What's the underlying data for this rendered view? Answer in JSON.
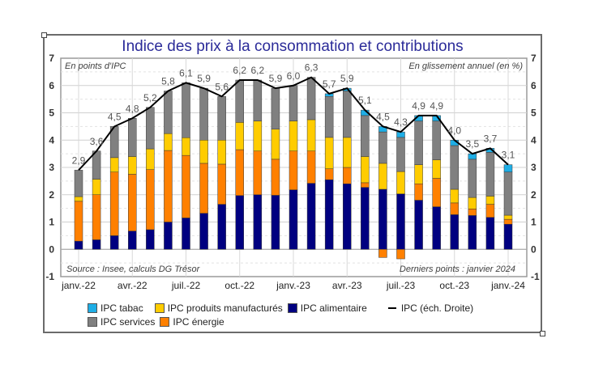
{
  "chart_data": {
    "type": "bar",
    "stacked": true,
    "title": "Indice des prix à la consommation et contributions",
    "left_annotation": "En points d'IPC",
    "right_annotation": "En glissement annuel (en %)",
    "source_note": "Source : Insee, calculs DG Trésor",
    "last_points_note": "Derniers points : janvier 2024",
    "ylim": [
      -1,
      7
    ],
    "y_ticks": [
      -1,
      0,
      1,
      2,
      3,
      4,
      5,
      6,
      7
    ],
    "y2lim": [
      -1,
      7
    ],
    "y2_ticks": [
      -1,
      0,
      1,
      2,
      3,
      4,
      5,
      6,
      7
    ],
    "grid": true,
    "legend_position": "bottom",
    "x_tick_labels": [
      {
        "index": 0,
        "label": "janv.-22"
      },
      {
        "index": 3,
        "label": "avr.-22"
      },
      {
        "index": 6,
        "label": "juil.-22"
      },
      {
        "index": 9,
        "label": "oct.-22"
      },
      {
        "index": 12,
        "label": "janv.-23"
      },
      {
        "index": 15,
        "label": "avr.-23"
      },
      {
        "index": 18,
        "label": "juil.-23"
      },
      {
        "index": 21,
        "label": "oct.-23"
      },
      {
        "index": 24,
        "label": "janv.-24"
      }
    ],
    "categories": [
      "janv.-22",
      "févr.-22",
      "mars-22",
      "avr.-22",
      "mai-22",
      "juin-22",
      "juil.-22",
      "août-22",
      "sept.-22",
      "oct.-22",
      "nov.-22",
      "déc.-22",
      "janv.-23",
      "févr.-23",
      "mars-23",
      "avr.-23",
      "mai-23",
      "juin-23",
      "juil.-23",
      "août-23",
      "sept.-23",
      "oct.-23",
      "nov.-23",
      "déc.-23",
      "janv.-24"
    ],
    "series": [
      {
        "name": "IPC alimentaire",
        "color": "#000080",
        "values": [
          0.3,
          0.35,
          0.5,
          0.67,
          0.72,
          1.0,
          1.15,
          1.32,
          1.65,
          1.97,
          2.0,
          1.98,
          2.18,
          2.42,
          2.55,
          2.4,
          2.27,
          2.2,
          2.03,
          1.8,
          1.56,
          1.27,
          1.24,
          1.17,
          0.92
        ]
      },
      {
        "name": "IPC énergie",
        "color": "#ff8000",
        "values": [
          1.46,
          1.65,
          2.33,
          2.08,
          2.2,
          2.62,
          2.29,
          1.83,
          1.47,
          1.68,
          1.6,
          1.32,
          1.42,
          1.18,
          0.4,
          0.6,
          0.17,
          -0.3,
          -0.35,
          0.6,
          1.04,
          0.43,
          0.24,
          0.48,
          0.18
        ]
      },
      {
        "name": "IPC produits manufacturés",
        "color": "#ffcc00",
        "values": [
          0.17,
          0.57,
          0.53,
          0.65,
          0.76,
          0.62,
          0.65,
          0.85,
          0.88,
          1.0,
          1.1,
          1.1,
          1.1,
          1.15,
          1.15,
          1.1,
          0.96,
          0.95,
          0.82,
          0.7,
          0.68,
          0.5,
          0.42,
          0.3,
          0.15
        ]
      },
      {
        "name": "IPC services",
        "color": "#808080",
        "values": [
          0.97,
          1.03,
          1.14,
          1.4,
          1.52,
          1.56,
          2.01,
          1.9,
          1.6,
          1.55,
          1.5,
          1.5,
          1.3,
          1.55,
          1.5,
          1.7,
          1.5,
          1.15,
          1.25,
          1.6,
          1.42,
          1.6,
          1.4,
          1.6,
          1.58
        ]
      },
      {
        "name": "IPC tabac",
        "color": "#1eaee6",
        "values": [
          0,
          0,
          0,
          0,
          0,
          0,
          0,
          0,
          0,
          0,
          0,
          0,
          0,
          0,
          0.1,
          0.1,
          0.2,
          0.2,
          0.2,
          0.2,
          0.2,
          0.2,
          0.2,
          0.15,
          0.27
        ]
      }
    ],
    "line_series": {
      "name": "IPC (éch. Droite)",
      "color": "#000000",
      "values": [
        2.9,
        3.6,
        4.5,
        4.8,
        5.2,
        5.8,
        6.1,
        5.9,
        5.6,
        6.2,
        6.2,
        5.9,
        6.0,
        6.3,
        5.7,
        5.9,
        5.1,
        4.5,
        4.3,
        4.9,
        4.9,
        4.0,
        3.5,
        3.7,
        3.1
      ],
      "labels": [
        "2,9",
        "3,6",
        "4,5",
        "4,8",
        "5,2",
        "5,8",
        "6,1",
        "5,9",
        "5,6",
        "6,2",
        "6,2",
        "5,9",
        "6,0",
        "6,3",
        "5,7",
        "5,9",
        "5,1",
        "4,5",
        "4,3",
        "4,9",
        "4,9",
        "4,0",
        "3,5",
        "3,7",
        "3,1"
      ]
    },
    "legend": [
      {
        "label": "IPC tabac",
        "color": "#1eaee6",
        "kind": "box"
      },
      {
        "label": "IPC produits manufacturés",
        "color": "#ffcc00",
        "kind": "box"
      },
      {
        "label": "IPC alimentaire",
        "color": "#000080",
        "kind": "box"
      },
      {
        "label": "IPC (éch. Droite)",
        "color": "#000000",
        "kind": "line"
      },
      {
        "label": "IPC services",
        "color": "#808080",
        "kind": "box"
      },
      {
        "label": "IPC énergie",
        "color": "#ff8000",
        "kind": "box"
      }
    ]
  }
}
